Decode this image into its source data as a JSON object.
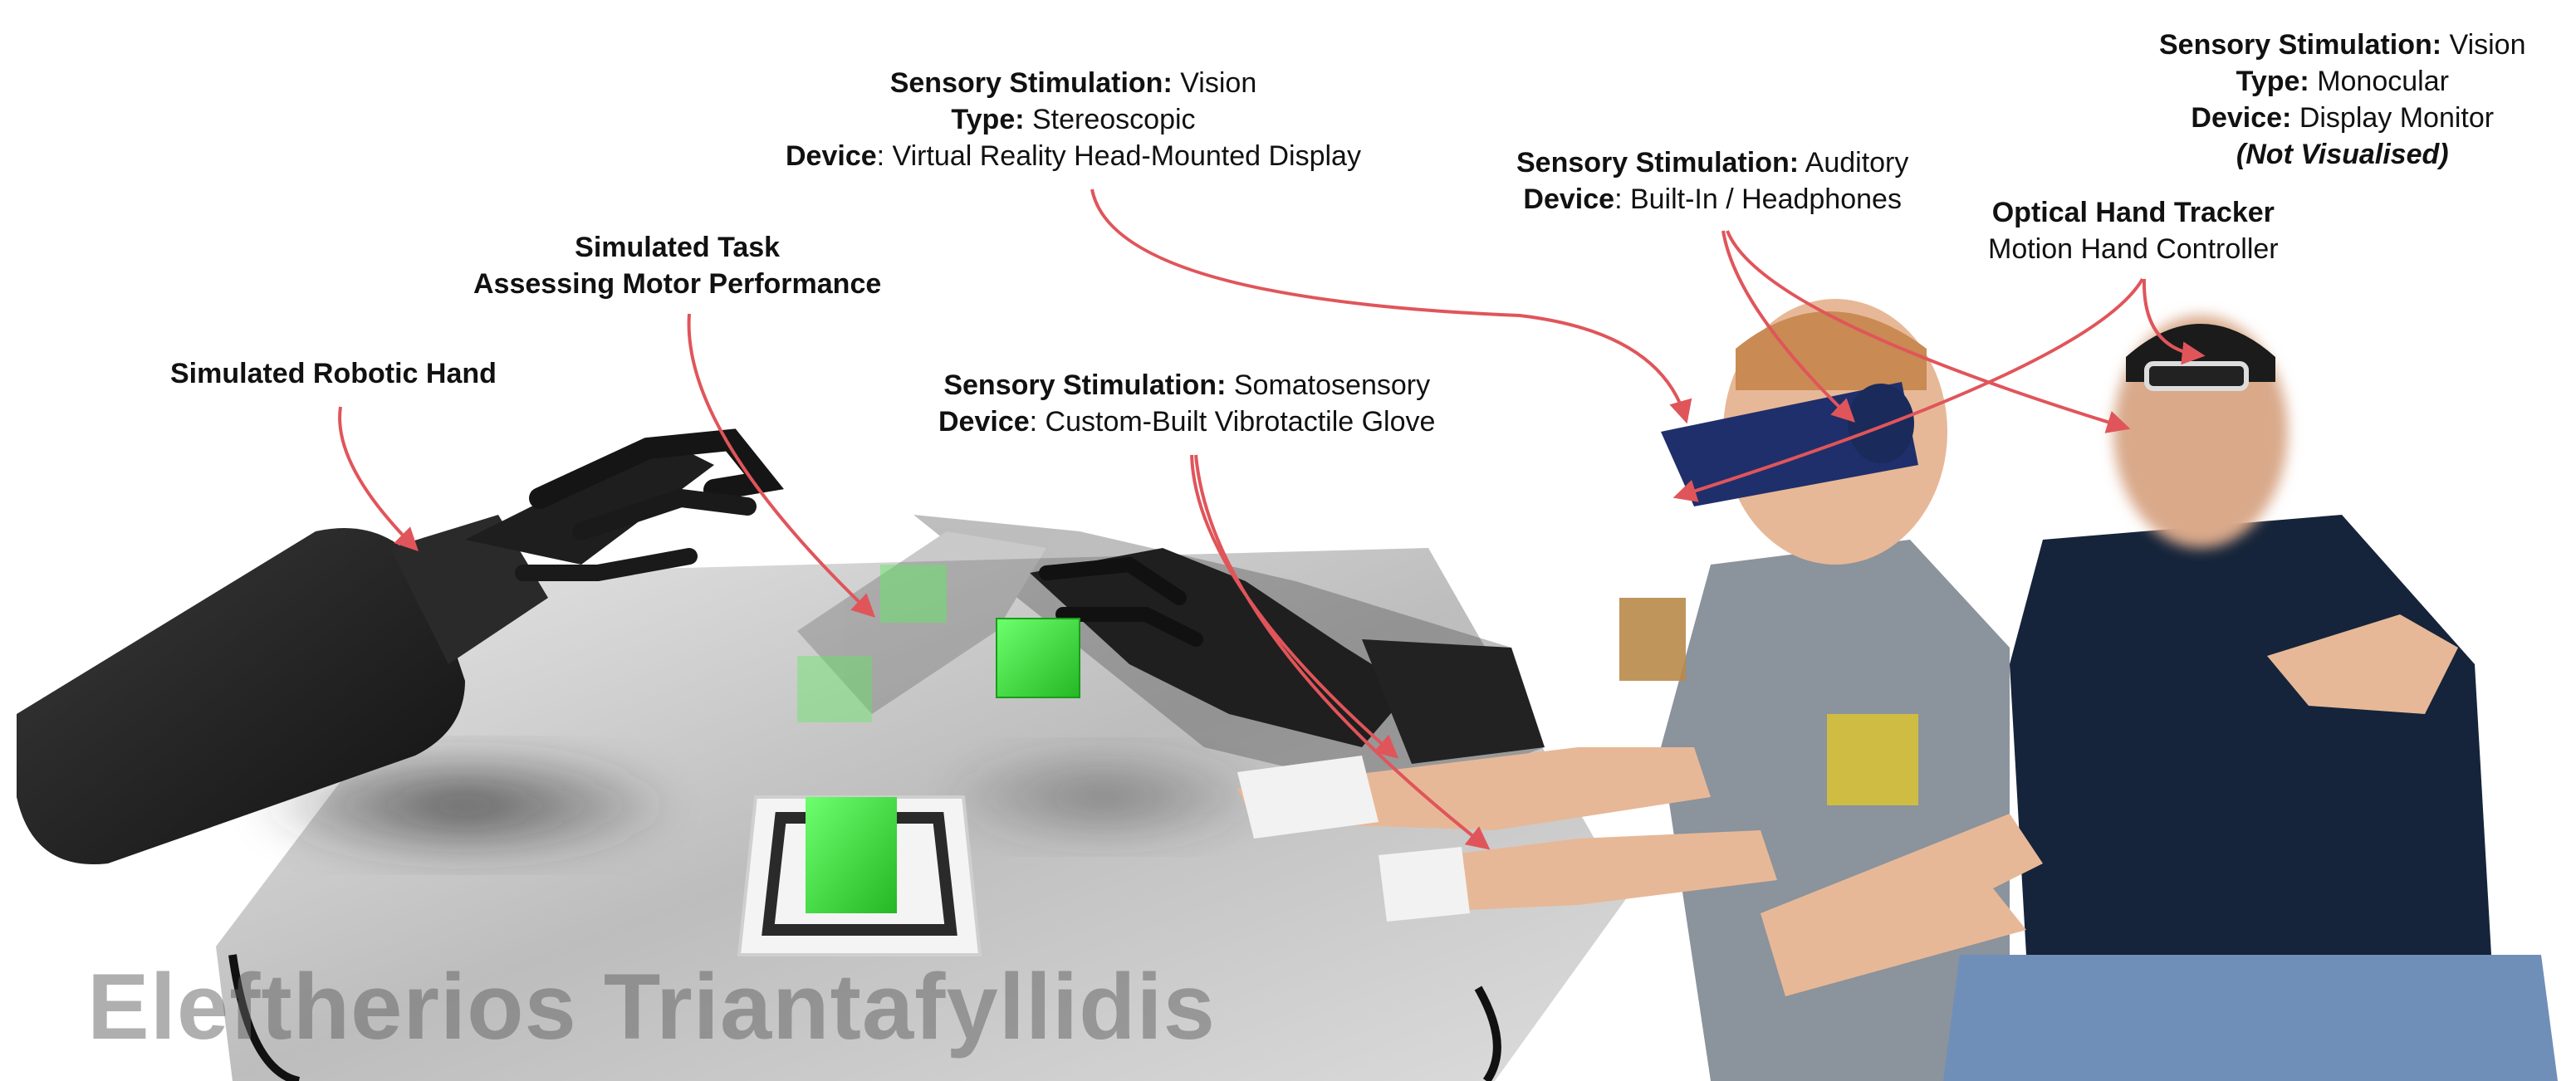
{
  "labels": {
    "robotic_hand": {
      "title": "Simulated Robotic Hand"
    },
    "task": {
      "title_line1": "Simulated Task",
      "title_line2": "Assessing Motor Performance"
    },
    "somatosensory": {
      "key1": "Sensory Stimulation:",
      "val1": "Somatosensory",
      "key2": "Device",
      "val2": ": Custom-Built Vibrotactile Glove"
    },
    "vision_vr": {
      "key1": "Sensory Stimulation:",
      "val1": "Vision",
      "key2": "Type:",
      "val2": "Stereoscopic",
      "key3": "Device",
      "val3": ": Virtual Reality Head-Mounted Display"
    },
    "auditory": {
      "key1": "Sensory Stimulation:",
      "val1": "Auditory",
      "key2": "Device",
      "val2": ": Built-In / Headphones"
    },
    "hand_tracker": {
      "title": "Optical Hand Tracker",
      "subtitle": "Motion Hand Controller"
    },
    "vision_monitor": {
      "key1": "Sensory Stimulation:",
      "val1": "Vision",
      "key2": "Type:",
      "val2": "Monocular",
      "key3": "Device:",
      "val3": "Display Monitor",
      "note": "(Not Visualised)"
    }
  },
  "watermark": "Eleftherios Triantafyllidis",
  "colors": {
    "arrow": "#e0555a",
    "cube": "#3fe03f",
    "headset": "#1f2f6b",
    "shirt_grey": "#8b939c",
    "shirt_navy": "#15243a",
    "jeans": "#6f8fb8",
    "skin": "#e7b897"
  }
}
